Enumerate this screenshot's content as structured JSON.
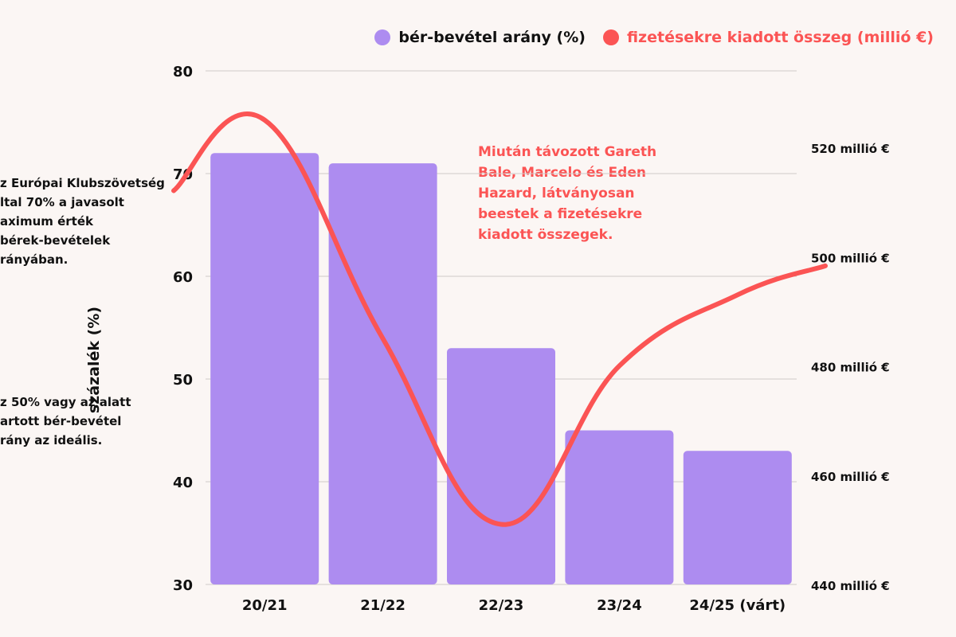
{
  "chart_data": {
    "type": "bar",
    "categories": [
      "20/21",
      "21/22",
      "22/23",
      "23/24",
      "24/25 (várt)"
    ],
    "series": [
      {
        "name": "bér-bevétel arány (%)",
        "values": [
          72,
          71,
          53,
          45,
          43
        ],
        "color": "#ad8cf0",
        "axis": "left"
      },
      {
        "name": "fizetésekre kiadott összeg (millió €)",
        "type": "line",
        "values": [
          525,
          485,
          451,
          480,
          493
        ],
        "color": "#fb5454",
        "axis": "right"
      }
    ],
    "ylabel": "százalék (%)",
    "ylim": [
      30,
      80
    ],
    "yticks": [
      30,
      40,
      50,
      60,
      70,
      80
    ],
    "y2lim": [
      440,
      534
    ],
    "y2ticks": [
      440,
      460,
      480,
      500,
      520
    ],
    "y2ticklabels": [
      "440 millió €",
      "460 millió €",
      "480 millió €",
      "500 millió €",
      "520 millió €"
    ],
    "grid": true,
    "legend": "top-right"
  },
  "notes": [
    "z Európai Klubszövetség\nltal 70% a javasolt\naximum érték\nbérek-bevételek\nrányában.",
    "z 50% vagy az alatt\nartott bér-bevétel\nrány az ideális."
  ],
  "annotation": "Miután távozott Gareth\nBale, Marcelo és Eden\nHazard, látványosan\nbeestek a fizetésekre\nkiadott összegek.",
  "colors": {
    "bar": "#ad8cf0",
    "line": "#fb5454",
    "grid": "#cfcac8",
    "text": "#111111"
  }
}
